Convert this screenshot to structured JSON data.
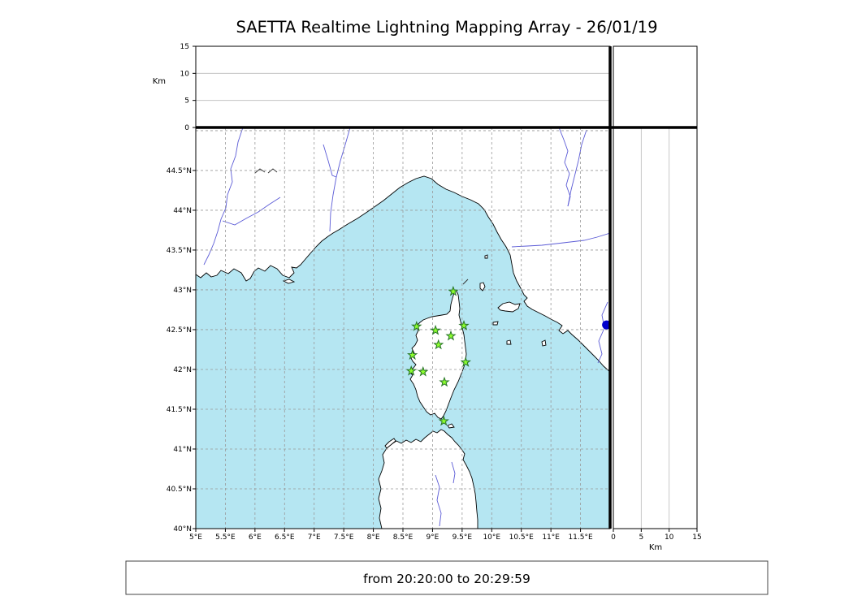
{
  "title": "SAETTA Realtime Lightning Mapping Array - 26/01/19",
  "caption": "from 20:20:00 to 20:29:59",
  "colors": {
    "sea": "#b5e6f2",
    "land": "#ffffff",
    "coastline": "#000000",
    "grid": "#999999",
    "panel_grid": "#bbbbbb",
    "river": "#5b5bd6",
    "station_fill": "#8dff2f",
    "station_stroke": "#267326",
    "source": "#0000cd",
    "border": "#000000"
  },
  "chart_data": {
    "type": "scatter",
    "title": "SAETTA Realtime Lightning Mapping Array - 26/01/19",
    "time_window": "from 20:20:00 to 20:29:59",
    "map_panel": {
      "lon_range": [
        5,
        12
      ],
      "lat_range": [
        40,
        45.04
      ],
      "grid": "dashed, 0.5 degree spacing",
      "lon_tick_values": [
        5,
        5.5,
        6,
        6.5,
        7,
        7.5,
        8,
        8.5,
        9,
        9.5,
        10,
        10.5,
        11,
        11.5
      ],
      "lon_tick_labels": [
        "5°E",
        "5.5°E",
        "6°E",
        "6.5°E",
        "7°E",
        "7.5°E",
        "8°E",
        "8.5°E",
        "9°E",
        "9.5°E",
        "10°E",
        "10.5°E",
        "11°E",
        "11.5°E"
      ],
      "lat_tick_values": [
        40,
        40.5,
        41,
        41.5,
        42,
        42.5,
        43,
        43.5,
        44,
        44.5
      ],
      "lat_tick_labels": [
        "40°N",
        "40.5°N",
        "41°N",
        "41.5°N",
        "42°N",
        "42.5°N",
        "43°N",
        "43.5°N",
        "44°N",
        "44.5°N"
      ],
      "lon_grid_values": [
        5.5,
        6,
        6.5,
        7,
        7.5,
        8,
        8.5,
        9,
        9.5,
        10,
        10.5,
        11,
        11.5
      ],
      "lat_grid_values": [
        40.5,
        41,
        41.5,
        42,
        42.5,
        43,
        43.5,
        44,
        44.5,
        45
      ]
    },
    "altitude_panel": {
      "label": "Km",
      "range_km": [
        0,
        15
      ],
      "tick_values": [
        0,
        5,
        10,
        15
      ],
      "tick_labels": [
        "0",
        "5",
        "10",
        "15"
      ],
      "grid_values": [
        5,
        10
      ]
    },
    "stations": [
      {
        "lon": 9.35,
        "lat": 42.98
      },
      {
        "lon": 8.73,
        "lat": 42.54
      },
      {
        "lon": 9.05,
        "lat": 42.49
      },
      {
        "lon": 9.53,
        "lat": 42.55
      },
      {
        "lon": 9.31,
        "lat": 42.42
      },
      {
        "lon": 9.1,
        "lat": 42.31
      },
      {
        "lon": 8.66,
        "lat": 42.18
      },
      {
        "lon": 9.56,
        "lat": 42.09
      },
      {
        "lon": 8.64,
        "lat": 41.98
      },
      {
        "lon": 8.84,
        "lat": 41.97
      },
      {
        "lon": 9.2,
        "lat": 41.84
      },
      {
        "lon": 9.19,
        "lat": 41.35
      }
    ],
    "sources": [
      {
        "lon": 11.94,
        "lat": 42.56,
        "alt_km": 0
      }
    ]
  }
}
